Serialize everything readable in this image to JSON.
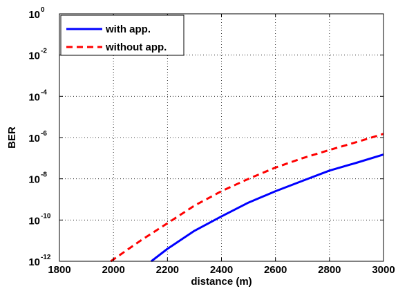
{
  "chart_data": {
    "type": "line",
    "title": "",
    "xlabel": "distance (m)",
    "ylabel": "BER",
    "xlim": [
      1800,
      3000
    ],
    "ylim": [
      1e-12,
      1
    ],
    "yscale": "log",
    "grid": true,
    "legend_position": "top-left",
    "x_ticks": [
      "1800",
      "2000",
      "2200",
      "2400",
      "2600",
      "2800",
      "3000"
    ],
    "y_ticks": [
      {
        "base": "10",
        "exp": "0"
      },
      {
        "base": "10",
        "exp": "-2"
      },
      {
        "base": "10",
        "exp": "-4"
      },
      {
        "base": "10",
        "exp": "-6"
      },
      {
        "base": "10",
        "exp": "-8"
      },
      {
        "base": "10",
        "exp": "-10"
      },
      {
        "base": "10",
        "exp": "-12"
      }
    ],
    "series": [
      {
        "name": "with app.",
        "color": "#0000ff",
        "style": "solid",
        "points": [
          [
            2140,
            1e-12
          ],
          [
            2200,
            4e-12
          ],
          [
            2300,
            3e-11
          ],
          [
            2400,
            1.5e-10
          ],
          [
            2500,
            7e-10
          ],
          [
            2600,
            2.5e-09
          ],
          [
            2700,
            8e-09
          ],
          [
            2800,
            2.5e-08
          ],
          [
            2900,
            6e-08
          ],
          [
            3000,
            1.5e-07
          ]
        ]
      },
      {
        "name": "without app.",
        "color": "#ff0000",
        "style": "dashed",
        "points": [
          [
            1990,
            1e-12
          ],
          [
            2100,
            1e-11
          ],
          [
            2200,
            7e-11
          ],
          [
            2300,
            5e-10
          ],
          [
            2400,
            2.5e-09
          ],
          [
            2500,
            1e-08
          ],
          [
            2600,
            3.5e-08
          ],
          [
            2700,
            1e-07
          ],
          [
            2800,
            2.5e-07
          ],
          [
            2900,
            6e-07
          ],
          [
            3000,
            1.5e-06
          ]
        ]
      }
    ]
  }
}
